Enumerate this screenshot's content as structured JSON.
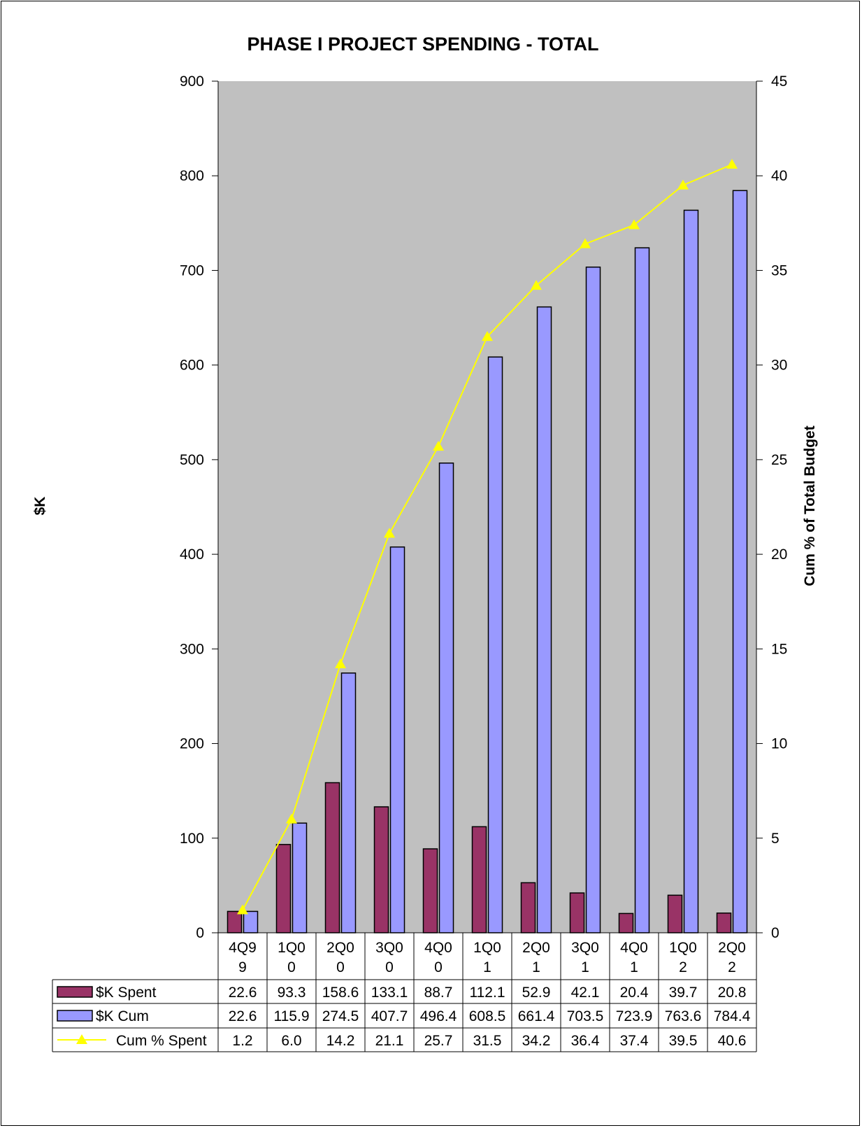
{
  "chart_data": {
    "type": "bar",
    "title": "PHASE I PROJECT SPENDING - TOTAL",
    "ylabel": "$K",
    "y2label": "Cum % of Total Budget",
    "ylim": [
      0,
      900
    ],
    "y2lim": [
      0,
      45
    ],
    "yticks": [
      "0",
      "100",
      "200",
      "300",
      "400",
      "500",
      "600",
      "700",
      "800",
      "900"
    ],
    "y2ticks": [
      "0",
      "5",
      "10",
      "15",
      "20",
      "25",
      "30",
      "35",
      "40",
      "45"
    ],
    "categories": [
      [
        "4Q9",
        "9"
      ],
      [
        "1Q0",
        "0"
      ],
      [
        "2Q0",
        "0"
      ],
      [
        "3Q0",
        "0"
      ],
      [
        "4Q0",
        "0"
      ],
      [
        "1Q0",
        "1"
      ],
      [
        "2Q0",
        "1"
      ],
      [
        "3Q0",
        "1"
      ],
      [
        "4Q0",
        "1"
      ],
      [
        "1Q0",
        "2"
      ],
      [
        "2Q0",
        "2"
      ]
    ],
    "grid": false,
    "legend": "data-table",
    "plot_background": "#c0c0c0",
    "series": [
      {
        "name": "$K Spent",
        "type": "bar",
        "axis": "left",
        "color": "#993366",
        "values": [
          22.6,
          93.3,
          158.6,
          133.1,
          88.7,
          112.1,
          52.9,
          42.1,
          20.4,
          39.7,
          20.8
        ],
        "labels": [
          "22.6",
          "93.3",
          "158.6",
          "133.1",
          "88.7",
          "112.1",
          "52.9",
          "42.1",
          "20.4",
          "39.7",
          "20.8"
        ]
      },
      {
        "name": "$K Cum",
        "type": "bar",
        "axis": "left",
        "color": "#9999ff",
        "values": [
          22.6,
          115.9,
          274.5,
          407.7,
          496.4,
          608.5,
          661.4,
          703.5,
          723.9,
          763.6,
          784.4
        ],
        "labels": [
          "22.6",
          "115.9",
          "274.5",
          "407.7",
          "496.4",
          "608.5",
          "661.4",
          "703.5",
          "723.9",
          "763.6",
          "784.4"
        ]
      },
      {
        "name": "Cum % Spent",
        "type": "line",
        "axis": "right",
        "color": "#ffff00",
        "marker": "triangle",
        "values": [
          1.2,
          6.0,
          14.2,
          21.1,
          25.7,
          31.5,
          34.2,
          36.4,
          37.4,
          39.5,
          40.6
        ],
        "labels": [
          "1.2",
          "6.0",
          "14.2",
          "21.1",
          "25.7",
          "31.5",
          "34.2",
          "36.4",
          "37.4",
          "39.5",
          "40.6"
        ]
      }
    ]
  }
}
